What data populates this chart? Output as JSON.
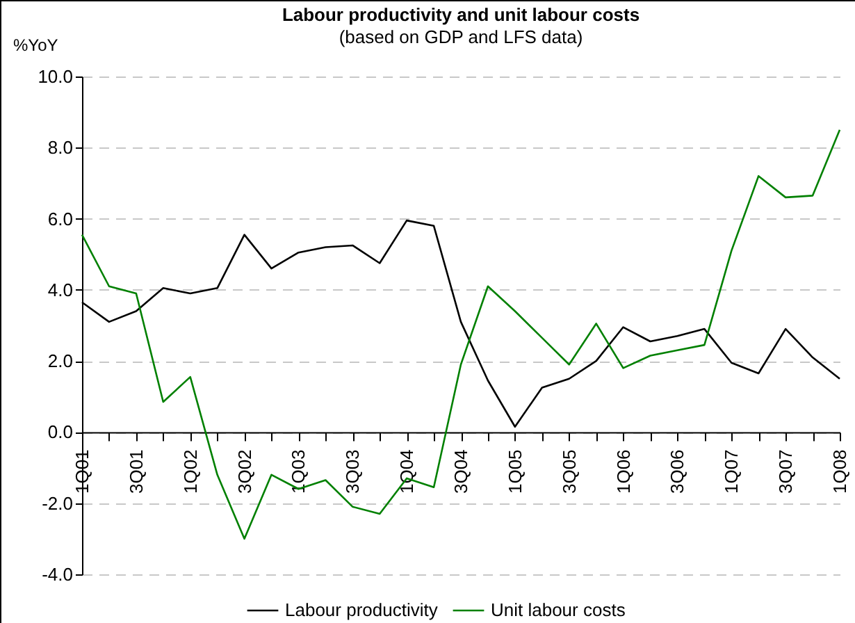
{
  "chart_data": {
    "type": "line",
    "title": "Labour productivity and unit labour costs",
    "subtitle": "(based on GDP and LFS data)",
    "ylabel": "%YoY",
    "categories": [
      "1Q01",
      null,
      "3Q01",
      null,
      "1Q02",
      null,
      "3Q02",
      null,
      "1Q03",
      null,
      "3Q03",
      null,
      "1Q04",
      null,
      "3Q04",
      null,
      "1Q05",
      null,
      "3Q05",
      null,
      "1Q06",
      null,
      "3Q06",
      null,
      "1Q07",
      null,
      "3Q07",
      null,
      "1Q08"
    ],
    "series": [
      {
        "name": "Labour productivity",
        "color": "#000000",
        "values": [
          3.65,
          3.1,
          3.4,
          4.05,
          3.9,
          4.05,
          5.55,
          4.6,
          5.05,
          5.2,
          5.25,
          4.75,
          5.95,
          5.8,
          3.1,
          1.45,
          0.15,
          1.25,
          1.5,
          2.0,
          2.95,
          2.55,
          2.7,
          2.9,
          1.95,
          1.65,
          2.9,
          2.1,
          1.5
        ]
      },
      {
        "name": "Unit labour costs",
        "color": "#008000",
        "values": [
          5.55,
          4.1,
          3.9,
          0.85,
          1.55,
          -1.2,
          -3.0,
          -1.2,
          -1.6,
          -1.35,
          -2.1,
          -2.3,
          -1.3,
          -1.55,
          1.9,
          4.1,
          3.4,
          2.65,
          1.9,
          3.05,
          1.8,
          2.15,
          2.3,
          2.45,
          5.1,
          7.2,
          6.6,
          6.65,
          8.5
        ]
      }
    ],
    "ylim": [
      -4,
      10
    ],
    "yticks": [
      {
        "value": -4,
        "label": "-4.0"
      },
      {
        "value": -2,
        "label": "-2.0"
      },
      {
        "value": 0,
        "label": "0.0"
      },
      {
        "value": 2,
        "label": "2.0"
      },
      {
        "value": 4,
        "label": "4.0"
      },
      {
        "value": 6,
        "label": "6.0"
      },
      {
        "value": 8,
        "label": "8.0"
      },
      {
        "value": 10,
        "label": "10.0"
      }
    ],
    "grid": "y",
    "legend": "bottom",
    "marker": "none",
    "line_style": "solid"
  }
}
